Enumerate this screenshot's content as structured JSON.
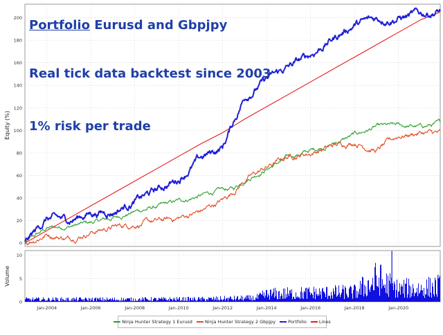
{
  "overlay": {
    "title_prefix": "Portfolio",
    "title_rest": " Eurusd and Gbpjpy",
    "line2": "Real tick data backtest since 2003",
    "line3": "1% risk per trade"
  },
  "colors": {
    "green": "#2ca02c",
    "orange": "#e0481f",
    "blue": "#1f1fd6",
    "red": "#e8191b",
    "volume": "#1010e0",
    "grid": "#dcdcdc",
    "overlay_text": "#1f3fa8"
  },
  "chart_data": [
    {
      "type": "line",
      "title": "",
      "xlabel": "",
      "ylabel": "Equity (%)",
      "xlim": [
        2003.0,
        2021.9
      ],
      "ylim": [
        -3,
        212
      ],
      "yticks": [
        0,
        20,
        40,
        60,
        80,
        100,
        120,
        140,
        160,
        180,
        200
      ],
      "x": [
        2003.0,
        2004.0,
        2005.0,
        2006.0,
        2007.0,
        2008.0,
        2009.0,
        2010.0,
        2011.0,
        2012.0,
        2012.5,
        2013.0,
        2014.0,
        2015.0,
        2016.0,
        2017.0,
        2018.0,
        2019.0,
        2020.0,
        2021.0,
        2021.9
      ],
      "series": [
        {
          "name": "Ninja Hunter Strategy 1 Eurusd",
          "color_key": "green",
          "values": [
            0,
            13,
            15,
            18,
            22,
            28,
            32,
            37,
            42,
            47,
            48,
            56,
            66,
            76,
            82,
            88,
            96,
            103,
            104,
            103,
            106
          ]
        },
        {
          "name": "Ninja Hunter Strategy 2 Gbpjpy",
          "color_key": "orange",
          "values": [
            0,
            8,
            4,
            10,
            14,
            17,
            19,
            22,
            28,
            38,
            46,
            56,
            67,
            77,
            80,
            86,
            90,
            82,
            95,
            98,
            97
          ]
        },
        {
          "name": "Portfolio",
          "color_key": "blue",
          "values": [
            0,
            22,
            20,
            27,
            28,
            37,
            47,
            57,
            75,
            85,
            108,
            130,
            145,
            156,
            167,
            181,
            194,
            199,
            200,
            203,
            206
          ]
        },
        {
          "name": "Lines",
          "color_key": "red",
          "values": [
            0,
            11,
            22,
            33,
            44,
            55,
            66,
            77,
            88,
            98,
            104,
            110,
            121,
            132,
            143,
            154,
            165,
            176,
            187,
            198,
            205
          ]
        }
      ]
    },
    {
      "type": "bar",
      "title": "",
      "xlabel": "",
      "ylabel": "Volume",
      "ylim": [
        0,
        11
      ],
      "yticks": [
        0,
        5,
        10
      ],
      "x_ticks": [
        "Jan-2004",
        "Jan-2006",
        "Jan-2008",
        "Jan-2010",
        "Jan-2012",
        "Jan-2014",
        "Jan-2016",
        "Jan-2018",
        "Jan-2020"
      ],
      "x_tick_years": [
        2004,
        2006,
        2008,
        2010,
        2012,
        2014,
        2016,
        2018,
        2020
      ],
      "volume_envelope": {
        "x": [
          2003.0,
          2005.0,
          2008.0,
          2011.0,
          2013.5,
          2014.0,
          2016.0,
          2018.0,
          2019.0,
          2020.0,
          2021.9
        ],
        "values": [
          1.0,
          1.0,
          1.0,
          1.1,
          1.5,
          3.0,
          3.5,
          3.8,
          9.0,
          5.0,
          5.8
        ]
      },
      "spikes": [
        {
          "x": 2019.2,
          "value": 8.0
        },
        {
          "x": 2019.7,
          "value": 10.9
        },
        {
          "x": 2021.8,
          "value": 5.8
        }
      ]
    }
  ],
  "legend": {
    "items": [
      {
        "label": "Ninja Hunter Strategy 1 Eurusd",
        "color_key": "green"
      },
      {
        "label": "Ninja Hunter Strategy 2 Gbpjpy",
        "color_key": "orange"
      },
      {
        "label": "Portfolio",
        "color_key": "blue"
      },
      {
        "label": "Lines",
        "color_key": "red"
      }
    ]
  }
}
